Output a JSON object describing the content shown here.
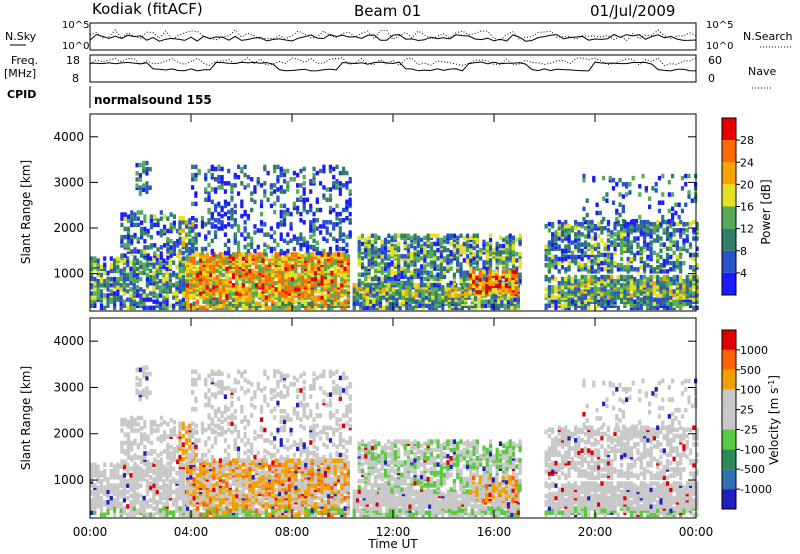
{
  "header": {
    "station": "Kodiak (fitACF)",
    "beam": "Beam 01",
    "date": "01/Jul/2009"
  },
  "panels": {
    "nsky_label": "N.Sky",
    "nsearch_label": "N.Search",
    "nsky_ticks": [
      "10^5",
      "10^0"
    ],
    "nsearch_ticks": [
      "10^5",
      "10^0"
    ],
    "freq_label_1": "Freq.",
    "freq_label_2": "[MHz]",
    "freq_ticks": [
      "18",
      "8"
    ],
    "nave_label": "Nave",
    "nave_ticks": [
      "60",
      "0"
    ],
    "cpid_label": "CPID",
    "cpid_value": "normalsound 155"
  },
  "chart_data": [
    {
      "type": "heatmap",
      "panel": "power",
      "ylabel": "Slant Range [km]",
      "xlabel": "",
      "x_ticks": [
        "00:00",
        "04:00",
        "08:00",
        "12:00",
        "16:00",
        "20:00",
        "00:00"
      ],
      "y_ticks": [
        1000,
        2000,
        3000,
        4000
      ],
      "ylim": [
        180,
        4500
      ],
      "xlim_hours": [
        0,
        24
      ],
      "colorbar": {
        "label": "Power [dB]",
        "ticks": [
          "28",
          "24",
          "20",
          "16",
          "12",
          "8",
          "4"
        ],
        "colors": [
          "#1a1aff",
          "#2a52c8",
          "#2e7e6a",
          "#55aa55",
          "#e6e020",
          "#f5a400",
          "#ff6a00",
          "#e60000"
        ]
      }
    },
    {
      "type": "heatmap",
      "panel": "velocity",
      "ylabel": "Slant Range [km]",
      "xlabel": "Time UT",
      "x_ticks": [
        "00:00",
        "04:00",
        "08:00",
        "12:00",
        "16:00",
        "20:00",
        "00:00"
      ],
      "y_ticks": [
        1000,
        2000,
        3000,
        4000
      ],
      "ylim": [
        180,
        4500
      ],
      "xlim_hours": [
        0,
        24
      ],
      "colorbar": {
        "label": "Velocity [m s^-1]",
        "ticks": [
          "1000",
          "500",
          "100",
          "25",
          "-25",
          "-100",
          "-500",
          "-1000"
        ],
        "colors": [
          "#2020c0",
          "#3070b0",
          "#2e8b57",
          "#5ac840",
          "#c8c8c8",
          "#c8c8c8",
          "#f0a000",
          "#ff6000",
          "#e00000"
        ]
      }
    }
  ]
}
